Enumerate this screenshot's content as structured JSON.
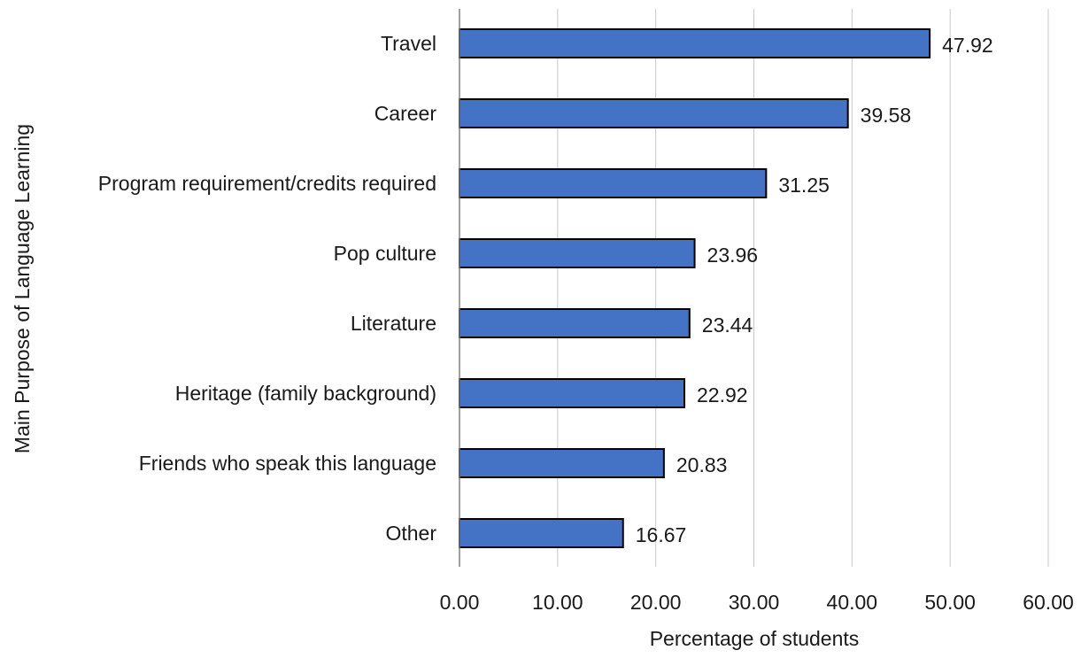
{
  "chart_data": {
    "type": "bar",
    "orientation": "horizontal",
    "title": "",
    "xlabel": "Percentage of students",
    "ylabel": "Main Purpose of Language Learning",
    "categories": [
      "Travel",
      "Career",
      "Program requirement/credits required",
      "Pop culture",
      "Literature",
      "Heritage (family background)",
      "Friends who speak this language",
      "Other"
    ],
    "values": [
      47.92,
      39.58,
      31.25,
      23.96,
      23.44,
      22.92,
      20.83,
      16.67
    ],
    "value_labels": [
      "47.92",
      "39.58",
      "31.25",
      "23.96",
      "23.44",
      "22.92",
      "20.83",
      "16.67"
    ],
    "xlim": [
      0,
      60
    ],
    "xticks": [
      0,
      10,
      20,
      30,
      40,
      50,
      60
    ],
    "xtick_labels": [
      "0.00",
      "10.00",
      "20.00",
      "30.00",
      "40.00",
      "50.00",
      "60.00"
    ],
    "grid": "vertical",
    "legend": "none",
    "bar_color": "#4472C4",
    "bar_edge_color": "#000000",
    "grid_color": "#c8c8c8"
  }
}
